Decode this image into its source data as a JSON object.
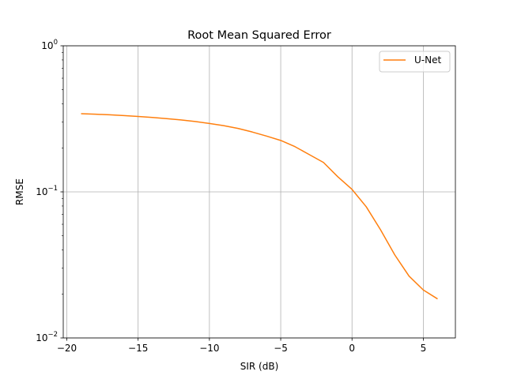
{
  "chart_data": {
    "type": "line",
    "title": "Root Mean Squared Error",
    "xlabel": "SIR (dB)",
    "ylabel": "RMSE",
    "xlim": [
      -20.25,
      7.25
    ],
    "ylim": [
      0.01,
      1
    ],
    "yscale": "log",
    "grid": true,
    "legend_position": "top-right",
    "xticks": [
      -20,
      -15,
      -10,
      -5,
      0,
      5
    ],
    "xtick_labels": [
      "−20",
      "−15",
      "−10",
      "−5",
      "0",
      "5"
    ],
    "yticks": [
      {
        "value": 0.01,
        "base": "10",
        "exp": "−2"
      },
      {
        "value": 0.1,
        "base": "10",
        "exp": "−1"
      },
      {
        "value": 1,
        "base": "10",
        "exp": "0"
      }
    ],
    "series": [
      {
        "name": "U-Net",
        "color": "#ff7f0e",
        "x": [
          -19,
          -18,
          -17,
          -16,
          -15,
          -14,
          -13,
          -12,
          -11,
          -10,
          -9,
          -8,
          -7,
          -6,
          -5,
          -4,
          -3,
          -2,
          -1,
          0,
          1,
          2,
          3,
          4,
          5,
          6
        ],
        "y": [
          0.343,
          0.34,
          0.337,
          0.333,
          0.328,
          0.323,
          0.317,
          0.311,
          0.303,
          0.294,
          0.284,
          0.272,
          0.257,
          0.241,
          0.225,
          0.204,
          0.18,
          0.159,
          0.127,
          0.104,
          0.079,
          0.055,
          0.037,
          0.0265,
          0.0213,
          0.0185
        ]
      }
    ]
  }
}
